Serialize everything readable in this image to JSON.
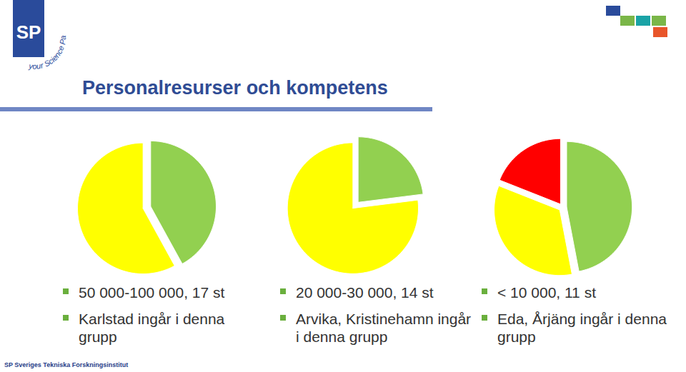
{
  "slide": {
    "title": "Personalresurser och kompetens",
    "logo": "SP",
    "logo_tagline": "your Science Partner",
    "footer": "SP Sveriges Tekniska Forskningsinstitut"
  },
  "chart_data": [
    {
      "type": "pie",
      "values": [
        42,
        58
      ],
      "colors": [
        "#92D050",
        "#FFFF00"
      ],
      "annotations": [
        "50 000-100 000, 17 st",
        "Karlstad ingår i denna grupp"
      ]
    },
    {
      "type": "pie",
      "values": [
        23,
        77
      ],
      "colors": [
        "#92D050",
        "#FFFF00"
      ],
      "annotations": [
        "20 000-30 000, 14 st",
        "Arvika, Kristinehamn ingår i denna grupp"
      ]
    },
    {
      "type": "pie",
      "values": [
        47,
        34,
        19
      ],
      "colors": [
        "#92D050",
        "#FFFF00",
        "#FF0000"
      ],
      "annotations": [
        "< 10 000, 11 st",
        "Eda, Årjäng ingår i denna grupp"
      ]
    }
  ]
}
